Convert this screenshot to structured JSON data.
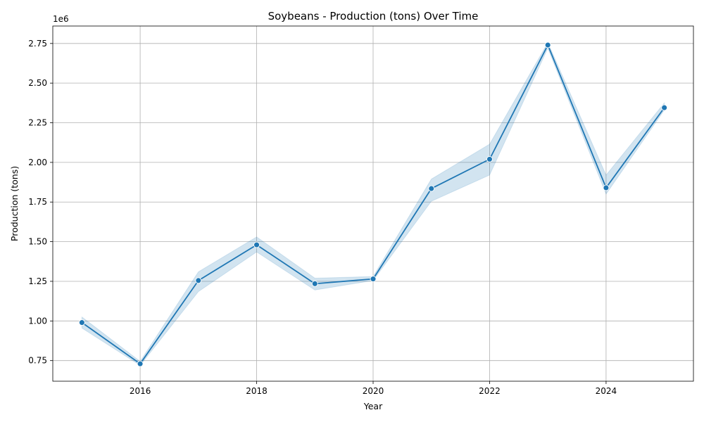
{
  "chart_data": {
    "type": "line",
    "title": "Soybeans - Production (tons) Over Time",
    "xlabel": "Year",
    "ylabel": "Production (tons)",
    "y_offset_label": "1e6",
    "xlim": [
      2014.5,
      2025.5
    ],
    "ylim": [
      620000,
      2860000
    ],
    "x_ticks": [
      2016,
      2018,
      2020,
      2022,
      2024
    ],
    "x_tick_labels": [
      "2016",
      "2018",
      "2020",
      "2022",
      "2024"
    ],
    "y_ticks": [
      750000,
      1000000,
      1250000,
      1500000,
      1750000,
      2000000,
      2250000,
      2500000,
      2750000
    ],
    "y_tick_labels": [
      "0.75",
      "1.00",
      "1.25",
      "1.50",
      "1.75",
      "2.00",
      "2.25",
      "2.50",
      "2.75"
    ],
    "grid": true,
    "series": [
      {
        "x": [
          2015,
          2016,
          2017,
          2018,
          2019,
          2020,
          2021,
          2022,
          2023,
          2024,
          2025
        ],
        "values": [
          990000,
          730000,
          1255000,
          1480000,
          1235000,
          1265000,
          1835000,
          2020000,
          2740000,
          1840000,
          2345000
        ],
        "ci_low": [
          955000,
          720000,
          1185000,
          1435000,
          1195000,
          1255000,
          1755000,
          1920000,
          2720000,
          1800000,
          2330000
        ],
        "ci_high": [
          1025000,
          745000,
          1310000,
          1530000,
          1270000,
          1280000,
          1895000,
          2115000,
          2755000,
          1920000,
          2375000
        ],
        "color": "#1f77b4",
        "band_color": "#1f77b4"
      }
    ]
  }
}
